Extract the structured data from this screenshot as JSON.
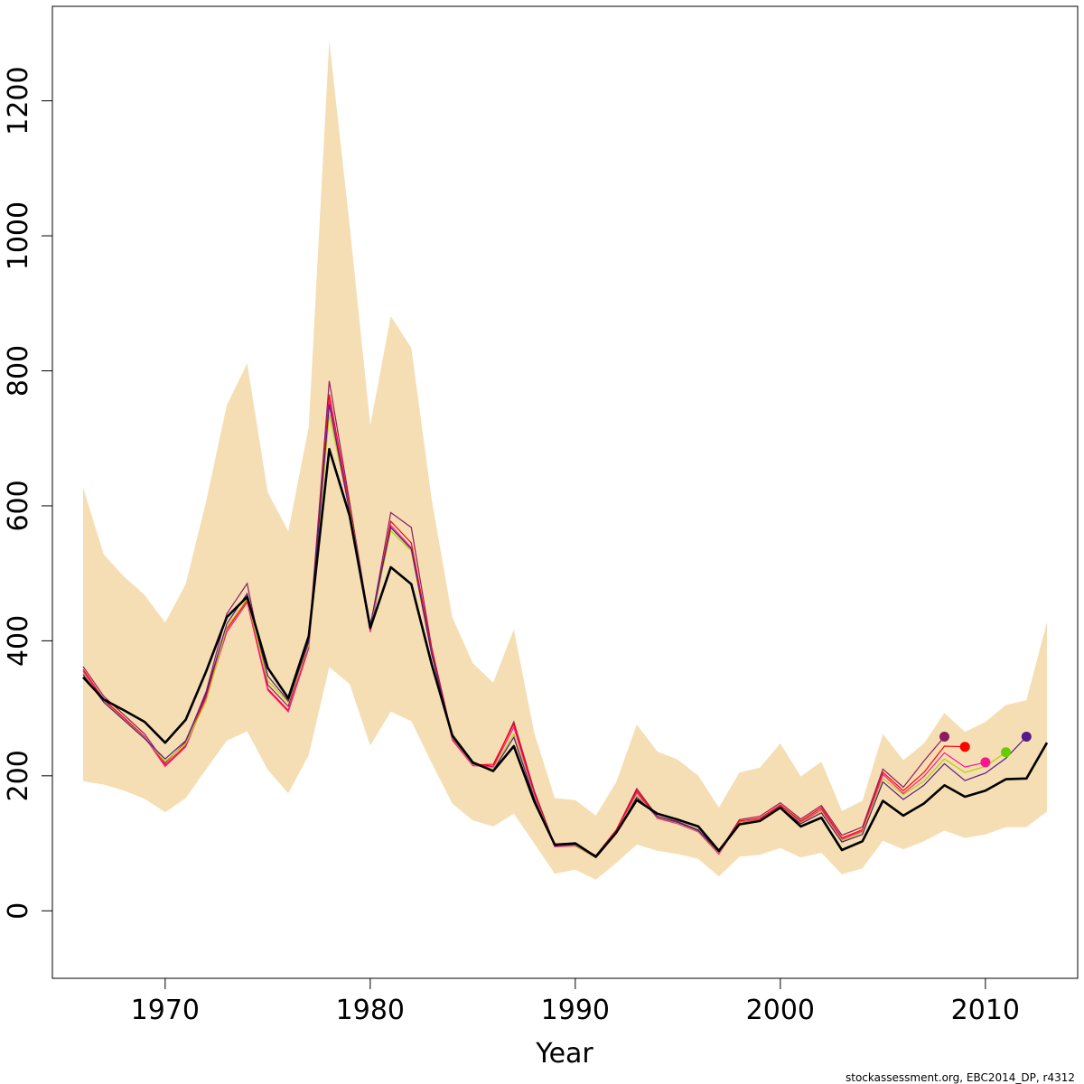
{
  "chart_data": {
    "type": "line",
    "title": "",
    "xlabel": "Year",
    "ylabel": "",
    "xlim": [
      1964.5,
      2014.5
    ],
    "ylim": [
      -100,
      1340
    ],
    "x_ticks": [
      1970,
      1980,
      1990,
      2000,
      2010
    ],
    "y_ticks": [
      0,
      200,
      400,
      600,
      800,
      1000,
      1200
    ],
    "grid": false,
    "footer": "stockassessment.org, EBC2014_DP, r4312",
    "colors": {
      "band": "#F5DEB3",
      "main": "#000000",
      "series": [
        "#8B1C62",
        "#FF0000",
        "#FF1493",
        "#B0D400",
        "#551A8B"
      ],
      "endpoints": [
        "#8B1C62",
        "#FF0000",
        "#FF1493",
        "#66CC00",
        "#551A8B"
      ]
    },
    "confidence_band": {
      "years": [
        1966,
        1967,
        1968,
        1969,
        1970,
        1971,
        1972,
        1973,
        1974,
        1975,
        1976,
        1977,
        1978,
        1979,
        1980,
        1981,
        1982,
        1983,
        1984,
        1985,
        1986,
        1987,
        1988,
        1989,
        1990,
        1991,
        1992,
        1993,
        1994,
        1995,
        1996,
        1997,
        1998,
        1999,
        2000,
        2001,
        2002,
        2003,
        2004,
        2005,
        2006,
        2007,
        2008,
        2009,
        2010,
        2011,
        2012,
        2013
      ],
      "upper": [
        627,
        528,
        495,
        468,
        427,
        484,
        607,
        749,
        811,
        620,
        562,
        717,
        1289,
        1015,
        719,
        881,
        834,
        609,
        435,
        367,
        338,
        417,
        264,
        167,
        164,
        141,
        191,
        276,
        236,
        224,
        200,
        153,
        205,
        212,
        248,
        199,
        221,
        148,
        163,
        262,
        223,
        248,
        293,
        265,
        280,
        305,
        312,
        428
      ],
      "lower": [
        192,
        187,
        178,
        166,
        146,
        167,
        210,
        252,
        266,
        209,
        174,
        231,
        361,
        336,
        245,
        295,
        281,
        219,
        159,
        134,
        125,
        144,
        100,
        55,
        61,
        46,
        71,
        98,
        89,
        84,
        77,
        51,
        80,
        83,
        93,
        79,
        86,
        54,
        63,
        104,
        91,
        103,
        119,
        108,
        113,
        124,
        124,
        147
      ]
    },
    "series": [
      {
        "x": [
          1966,
          1967,
          1968,
          1969,
          1970,
          1971,
          1972,
          1973,
          1974,
          1975,
          1976,
          1977,
          1978,
          1979,
          1980,
          1981,
          1982,
          1983,
          1984,
          1985,
          1986,
          1987,
          1988,
          1989,
          1990,
          1991,
          1992,
          1993,
          1994,
          1995,
          1996,
          1997,
          1998,
          1999,
          2000,
          2001,
          2002,
          2003,
          2004,
          2005,
          2006,
          2007,
          2008,
          2009,
          2010,
          2011,
          2012,
          2013
        ],
        "values": [
          346,
          313,
          297,
          280,
          249,
          283,
          355,
          435,
          465,
          360,
          315,
          407,
          684,
          585,
          419,
          509,
          484,
          365,
          260,
          220,
          207,
          244,
          162,
          98,
          100,
          80,
          116,
          164,
          144,
          135,
          125,
          89,
          128,
          133,
          153,
          125,
          138,
          90,
          103,
          163,
          141,
          159,
          186,
          169,
          178,
          195,
          196,
          249
        ]
      },
      {
        "x": [
          1966,
          1967,
          1968,
          1969,
          1970,
          1971,
          1972,
          1973,
          1974,
          1975,
          1976,
          1977,
          1978,
          1979,
          1980,
          1981,
          1982,
          1983,
          1984,
          1985,
          1986,
          1987,
          1988,
          1989,
          1990,
          1991,
          1992,
          1993,
          1994,
          1995,
          1996,
          1997,
          1998,
          1999,
          2000,
          2001,
          2002,
          2003,
          2004,
          2005,
          2006,
          2007,
          2008
        ],
        "values": [
          362,
          318,
          290,
          262,
          219,
          250,
          325,
          440,
          485,
          335,
          303,
          400,
          785,
          605,
          420,
          590,
          568,
          390,
          258,
          218,
          214,
          280,
          178,
          97,
          98,
          82,
          120,
          181,
          140,
          132,
          120,
          87,
          135,
          140,
          160,
          136,
          156,
          112,
          124,
          210,
          183,
          222,
          258
        ]
      },
      {
        "x": [
          1966,
          1967,
          1968,
          1969,
          1970,
          1971,
          1972,
          1973,
          1974,
          1975,
          1976,
          1977,
          1978,
          1979,
          1980,
          1981,
          1982,
          1983,
          1984,
          1985,
          1986,
          1987,
          1988,
          1989,
          1990,
          1991,
          1992,
          1993,
          1994,
          1995,
          1996,
          1997,
          1998,
          1999,
          2000,
          2001,
          2002,
          2003,
          2004,
          2005,
          2006,
          2007,
          2008,
          2009
        ],
        "values": [
          358,
          313,
          286,
          258,
          216,
          245,
          319,
          417,
          460,
          329,
          297,
          392,
          765,
          598,
          416,
          577,
          545,
          387,
          255,
          216,
          217,
          277,
          175,
          95,
          97,
          80,
          120,
          178,
          138,
          130,
          118,
          85,
          133,
          137,
          157,
          133,
          153,
          108,
          120,
          205,
          178,
          205,
          244,
          243
        ]
      },
      {
        "x": [
          1966,
          1967,
          1968,
          1969,
          1970,
          1971,
          1972,
          1973,
          1974,
          1975,
          1976,
          1977,
          1978,
          1979,
          1980,
          1981,
          1982,
          1983,
          1984,
          1985,
          1986,
          1987,
          1988,
          1989,
          1990,
          1991,
          1992,
          1993,
          1994,
          1995,
          1996,
          1997,
          1998,
          1999,
          2000,
          2001,
          2002,
          2003,
          2004,
          2005,
          2006,
          2007,
          2008,
          2009,
          2010
        ],
        "values": [
          355,
          311,
          284,
          257,
          214,
          243,
          316,
          413,
          457,
          327,
          295,
          389,
          757,
          593,
          413,
          571,
          538,
          382,
          253,
          215,
          213,
          272,
          172,
          95,
          96,
          79,
          118,
          175,
          137,
          129,
          117,
          84,
          131,
          135,
          155,
          131,
          150,
          106,
          118,
          202,
          174,
          199,
          234,
          213,
          220
        ]
      },
      {
        "x": [
          1966,
          1967,
          1968,
          1969,
          1970,
          1971,
          1972,
          1973,
          1974,
          1975,
          1976,
          1977,
          1978,
          1979,
          1980,
          1981,
          1982,
          1983,
          1984,
          1985,
          1986,
          1987,
          1988,
          1989,
          1990,
          1991,
          1992,
          1993,
          1994,
          1995,
          1996,
          1997,
          1998,
          1999,
          2000,
          2001,
          2002,
          2003,
          2004,
          2005,
          2006,
          2007,
          2008,
          2009,
          2010,
          2011
        ],
        "values": [
          352,
          310,
          283,
          256,
          221,
          248,
          311,
          420,
          462,
          341,
          309,
          394,
          735,
          594,
          421,
          563,
          533,
          379,
          256,
          217,
          210,
          262,
          169,
          96,
          97,
          79,
          116,
          171,
          139,
          130,
          118,
          86,
          130,
          134,
          154,
          130,
          147,
          104,
          116,
          196,
          172,
          192,
          225,
          205,
          214,
          235
        ]
      },
      {
        "x": [
          1966,
          1967,
          1968,
          1969,
          1970,
          1971,
          1972,
          1973,
          1974,
          1975,
          1976,
          1977,
          1978,
          1979,
          1980,
          1981,
          1982,
          1983,
          1984,
          1985,
          1986,
          1987,
          1988,
          1989,
          1990,
          1991,
          1992,
          1993,
          1994,
          1995,
          1996,
          1997,
          1998,
          1999,
          2000,
          2001,
          2002,
          2003,
          2004,
          2005,
          2006,
          2007,
          2008,
          2009,
          2010,
          2011,
          2012
        ],
        "values": [
          350,
          309,
          282,
          255,
          225,
          252,
          322,
          425,
          470,
          348,
          311,
          398,
          750,
          590,
          424,
          568,
          536,
          380,
          257,
          218,
          208,
          257,
          167,
          96,
          98,
          80,
          115,
          168,
          140,
          131,
          119,
          87,
          129,
          133,
          153,
          129,
          145,
          102,
          113,
          191,
          165,
          186,
          218,
          193,
          204,
          226,
          258
        ]
      }
    ],
    "endpoints": [
      {
        "x": 2008,
        "y": 258
      },
      {
        "x": 2009,
        "y": 243
      },
      {
        "x": 2010,
        "y": 220
      },
      {
        "x": 2011,
        "y": 235
      },
      {
        "x": 2012,
        "y": 258
      }
    ]
  }
}
